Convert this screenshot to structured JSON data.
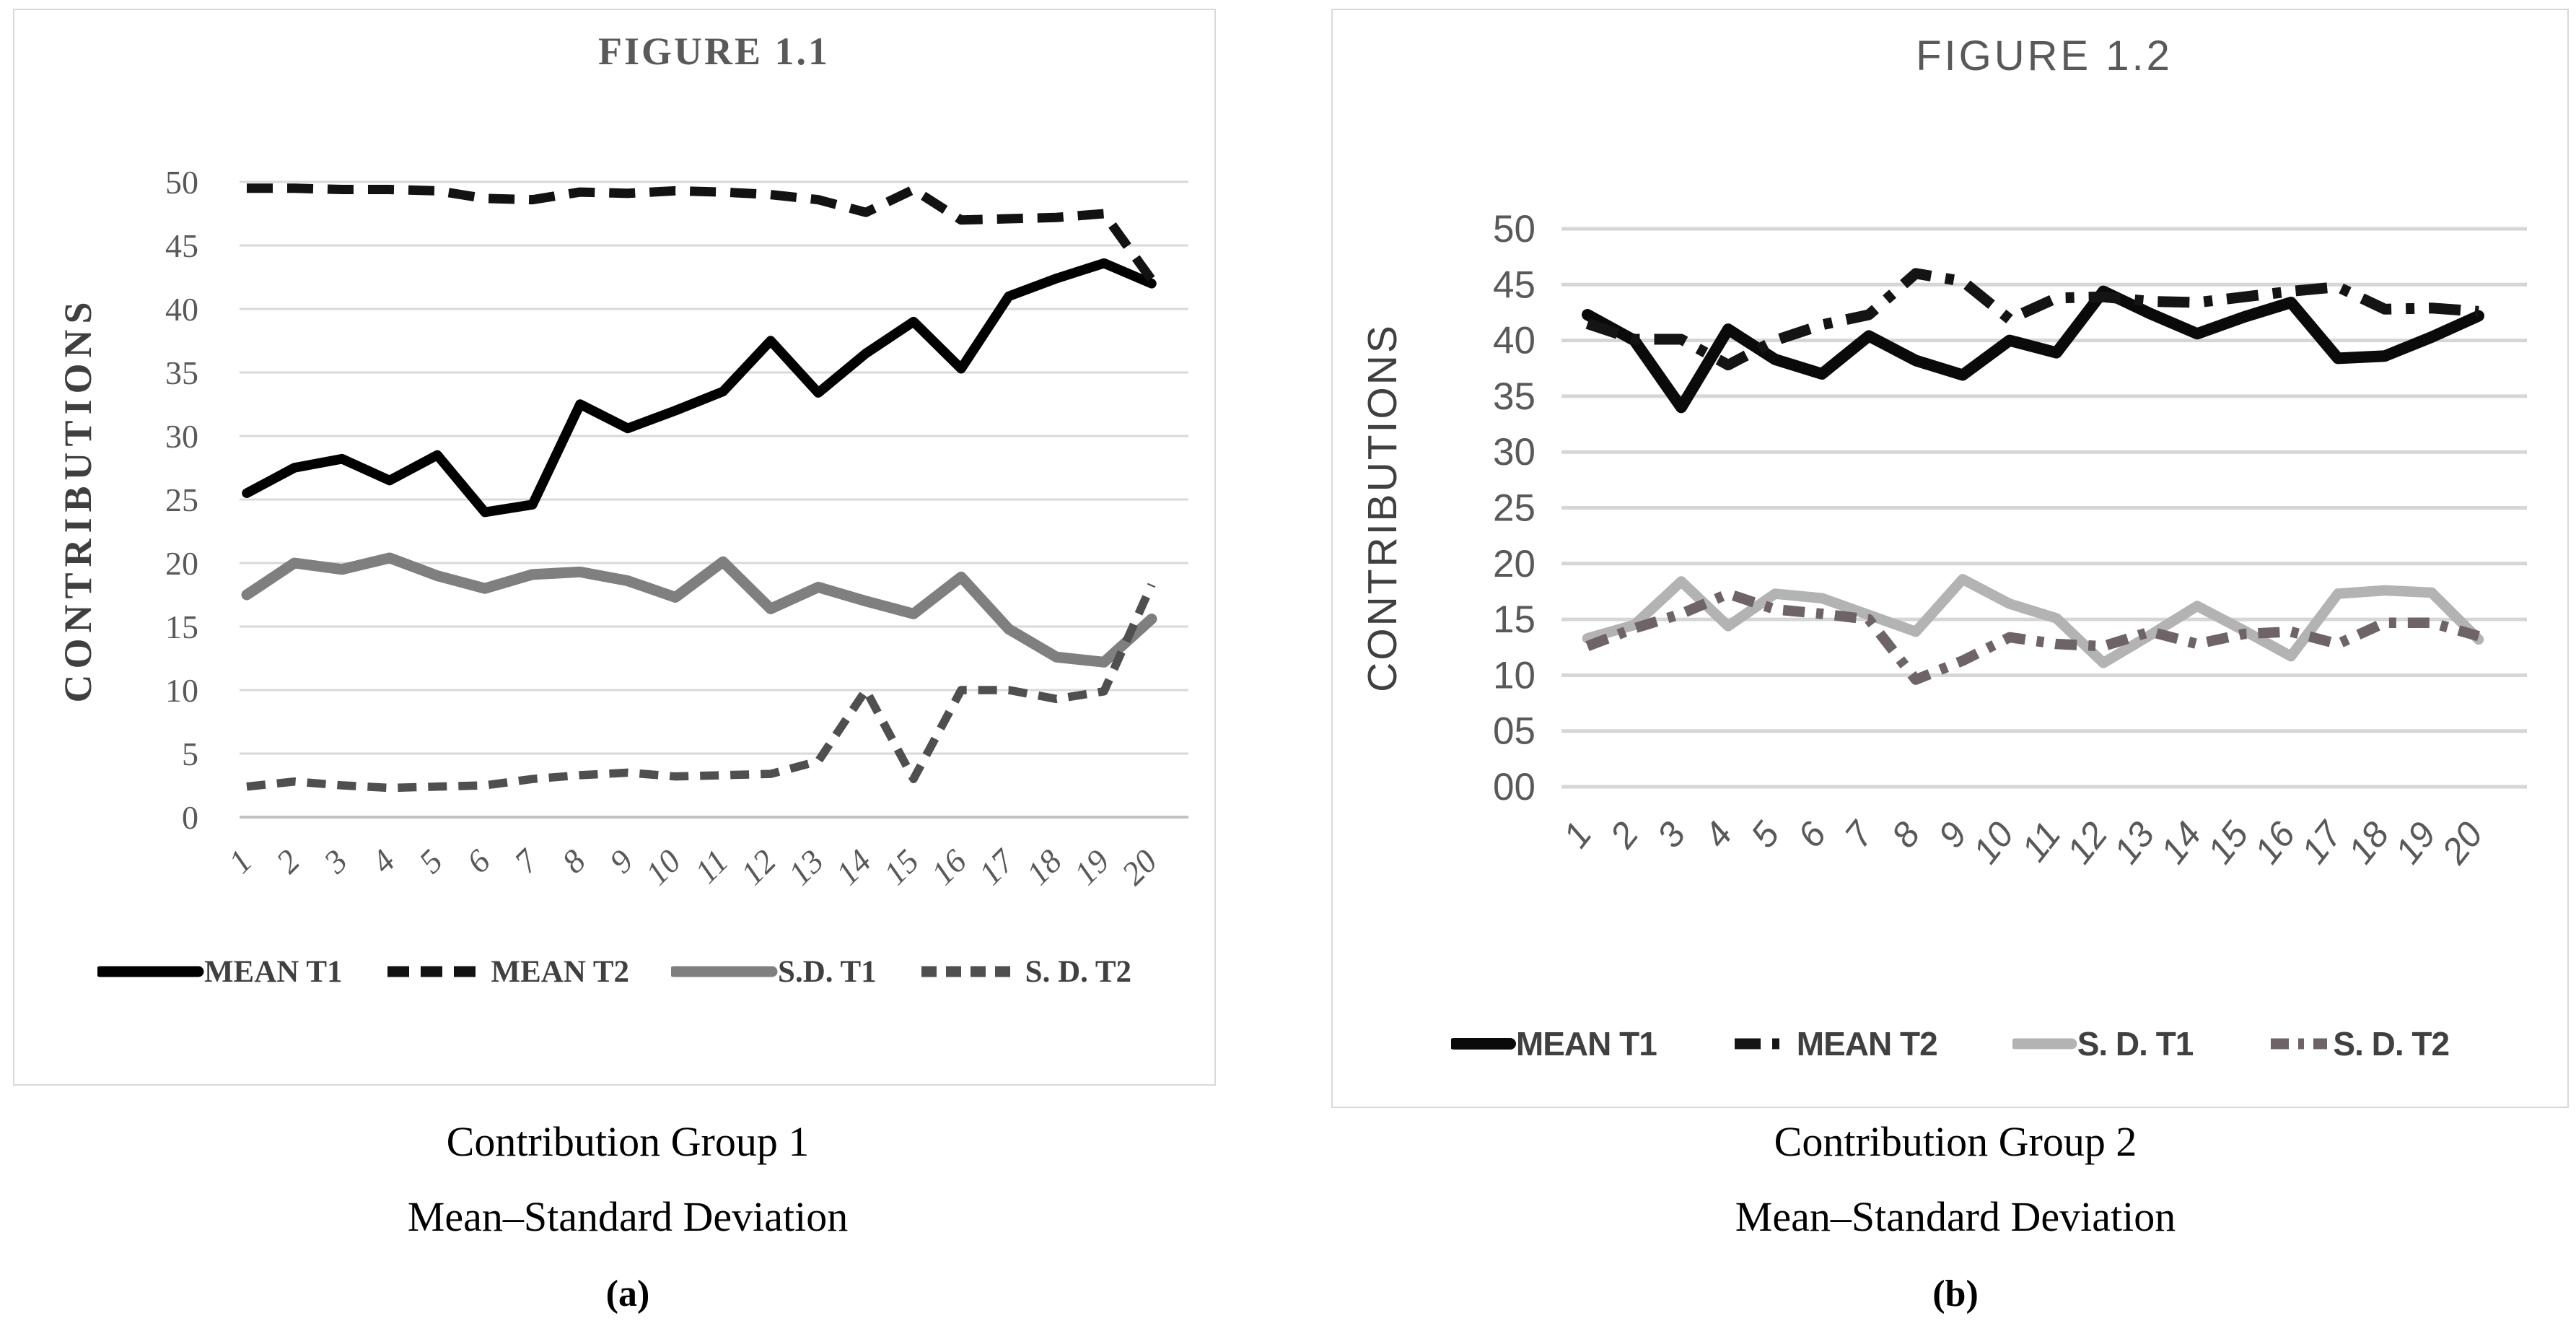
{
  "page": {
    "background": "#ffffff"
  },
  "chart_data": [
    {
      "type": "line",
      "title": "FIGURE 1.1",
      "ylabel": "CONTRIBUTIONS",
      "xlabel": "",
      "ylim": [
        0,
        50
      ],
      "ytick_step": 5,
      "ytick_labels": [
        "0",
        "5",
        "10",
        "15",
        "20",
        "25",
        "30",
        "35",
        "40",
        "45",
        "50"
      ],
      "categories": [
        "1",
        "2",
        "3",
        "4",
        "5",
        "6",
        "7",
        "8",
        "9",
        "10",
        "11",
        "12",
        "13",
        "14",
        "15",
        "16",
        "17",
        "18",
        "19",
        "20"
      ],
      "grid": true,
      "legend_position": "bottom",
      "series": [
        {
          "name": "MEAN T1",
          "color": "#000000",
          "width": 13.5,
          "dash": null,
          "values": [
            25.5,
            27.5,
            28.2,
            26.5,
            28.5,
            24,
            24.6,
            32.5,
            30.6,
            32,
            33.5,
            37.5,
            33.4,
            36.5,
            39,
            35.3,
            41,
            42.4,
            43.6,
            42
          ]
        },
        {
          "name": "MEAN T2",
          "color": "#121212",
          "width": 13,
          "dash": "36 20",
          "values": [
            49.5,
            49.5,
            49.4,
            49.4,
            49.3,
            48.7,
            48.6,
            49.2,
            49.1,
            49.3,
            49.2,
            49,
            48.6,
            47.6,
            49.4,
            47,
            47.1,
            47.2,
            47.5,
            42.3
          ]
        },
        {
          "name": "S.D. T1",
          "color": "#7f7f7f",
          "width": 15,
          "dash": null,
          "values": [
            17.5,
            20,
            19.5,
            20.4,
            19,
            18,
            19.1,
            19.3,
            18.6,
            17.3,
            20.1,
            16.4,
            18.1,
            17,
            16,
            18.9,
            14.8,
            12.6,
            12.2,
            15.6
          ]
        },
        {
          "name": "S. D. T2",
          "color": "#4f4f4f",
          "width": 11.5,
          "dash": "26 16",
          "values": [
            2.4,
            2.8,
            2.5,
            2.3,
            2.4,
            2.5,
            3,
            3.3,
            3.5,
            3.2,
            3.3,
            3.4,
            4.4,
            10,
            3,
            10,
            10,
            9.3,
            9.9,
            18.3
          ]
        }
      ]
    },
    {
      "type": "line",
      "title": "FIGURE 1.2",
      "ylabel": "CONTRIBUTIONS",
      "xlabel": "",
      "ylim": [
        0,
        50
      ],
      "ytick_step": 5,
      "ytick_labels": [
        "00",
        "05",
        "10",
        "15",
        "20",
        "25",
        "30",
        "35",
        "40",
        "45",
        "50"
      ],
      "categories": [
        "1",
        "2",
        "3",
        "4",
        "5",
        "6",
        "7",
        "8",
        "9",
        "10",
        "11",
        "12",
        "13",
        "14",
        "15",
        "16",
        "17",
        "18",
        "19",
        "20"
      ],
      "grid": true,
      "legend_position": "bottom",
      "series": [
        {
          "name": "MEAN T1",
          "color": "#0a0a0a",
          "width": 16,
          "dash": null,
          "values": [
            42.3,
            40,
            34,
            41,
            38.3,
            37,
            40.4,
            38.2,
            36.9,
            40,
            38.9,
            44.4,
            42.4,
            40.6,
            42.1,
            43.4,
            38.4,
            38.6,
            40.3,
            42.2
          ]
        },
        {
          "name": "MEAN T2",
          "color": "#141414",
          "width": 15,
          "dash": "44 20 12 20",
          "values": [
            41.5,
            40.1,
            40.1,
            37.8,
            40,
            41.4,
            42.3,
            46,
            45.3,
            41.9,
            43.8,
            43.9,
            43.5,
            43.4,
            43.9,
            44.4,
            44.8,
            42.8,
            42.9,
            42.6
          ]
        },
        {
          "name": "S. D. T1",
          "color": "#b3b3b3",
          "width": 14.5,
          "dash": null,
          "values": [
            13.3,
            14.5,
            18.4,
            14.4,
            17.3,
            16.9,
            15.4,
            13.9,
            18.6,
            16.4,
            15.1,
            11.1,
            13.6,
            16.2,
            14,
            11.7,
            17.3,
            17.6,
            17.4,
            13.2
          ]
        },
        {
          "name": "S. D. T2",
          "color": "#6e6366",
          "width": 14.5,
          "dash": "30 16 10 16",
          "values": [
            12.6,
            14.2,
            15.5,
            17.3,
            15.9,
            15.5,
            15,
            9.6,
            11.3,
            13.4,
            12.8,
            12.6,
            13.9,
            12.8,
            13.7,
            13.9,
            12.8,
            14.7,
            14.7,
            13.5
          ]
        }
      ]
    }
  ],
  "captions": {
    "left": {
      "line1": "Contribution Group 1",
      "line2": "Mean–Standard Deviation",
      "label": "(a)"
    },
    "right": {
      "line1": "Contribution Group 2",
      "line2": "Mean–Standard Deviation",
      "label": "(b)"
    }
  },
  "colors": {
    "gridline_left": "#d9d9d9",
    "gridline_right": "#d6d6d6",
    "axis_text": "#595959",
    "legend_text": "#404040",
    "chart_border": "#d9d9d9"
  }
}
